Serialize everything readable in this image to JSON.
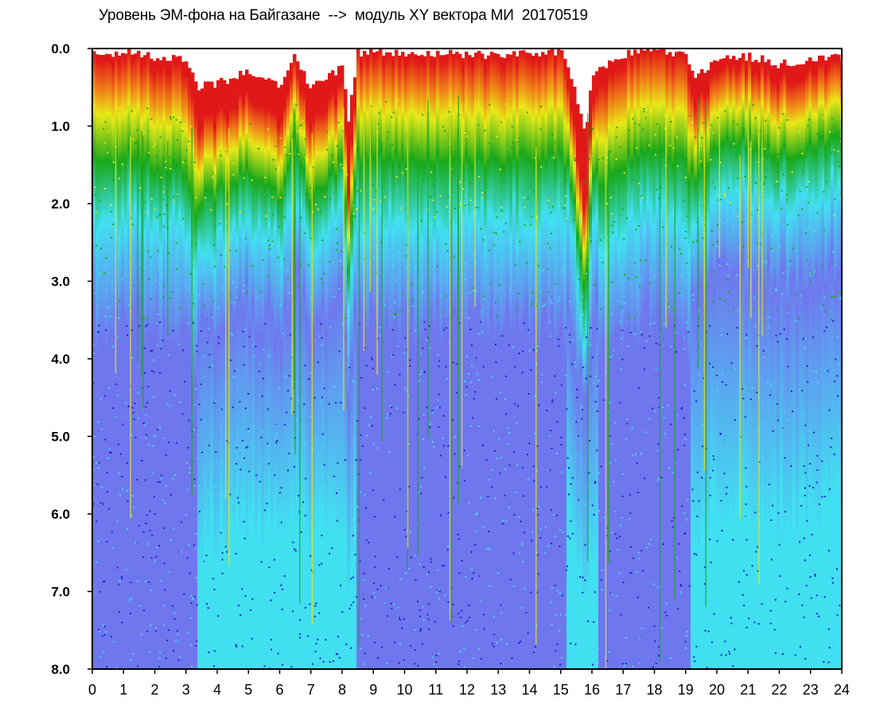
{
  "title": "Уровень ЭМ-фона на Байгазане  -->  модуль XY вектора МИ  20170519",
  "colors": {
    "background": "#ffffff",
    "frame": "#000000",
    "levels": [
      "#2020d0",
      "#6f77ee",
      "#40e0f0",
      "#1aa81a",
      "#e8e818",
      "#f07818",
      "#e01818"
    ]
  },
  "chart_data": {
    "type": "heatmap",
    "title": "Уровень ЭМ-фона на Байгазане  -->  модуль XY вектора МИ  20170519",
    "xlabel": "",
    "ylabel": "",
    "x_range": [
      0,
      24
    ],
    "y_range": [
      0.0,
      8.0
    ],
    "y_inverted": true,
    "grid": false,
    "legend": "none",
    "x_ticks": [
      "0",
      "1",
      "2",
      "3",
      "4",
      "5",
      "6",
      "7",
      "8",
      "9",
      "10",
      "11",
      "12",
      "13",
      "14",
      "15",
      "16",
      "17",
      "18",
      "19",
      "20",
      "21",
      "22",
      "23",
      "24"
    ],
    "y_ticks": [
      "0.0",
      "1.0",
      "2.0",
      "3.0",
      "4.0",
      "5.0",
      "6.0",
      "7.0",
      "8.0"
    ],
    "upper_edge": {
      "x": [
        0,
        1,
        2,
        3,
        3.4,
        4,
        5,
        6,
        6.5,
        7,
        8,
        8.2,
        8.5,
        9,
        10,
        11,
        12,
        13,
        14,
        15,
        15.4,
        15.8,
        16,
        17,
        18,
        19,
        19.3,
        20,
        21,
        22,
        23,
        24
      ],
      "y": [
        0.05,
        0.05,
        0.1,
        0.15,
        0.5,
        0.45,
        0.3,
        0.5,
        0.1,
        0.5,
        0.25,
        0.9,
        0.05,
        0.05,
        0.05,
        0.05,
        0.08,
        0.08,
        0.08,
        0.05,
        0.4,
        1.2,
        0.3,
        0.08,
        0.05,
        0.05,
        0.4,
        0.15,
        0.1,
        0.2,
        0.15,
        0.1
      ]
    },
    "quiet_intervals": [
      {
        "x_start": 3.4,
        "x_end": 8.5
      },
      {
        "x_start": 15.2,
        "x_end": 16.2
      },
      {
        "x_start": 19.2,
        "x_end": 24
      }
    ]
  }
}
